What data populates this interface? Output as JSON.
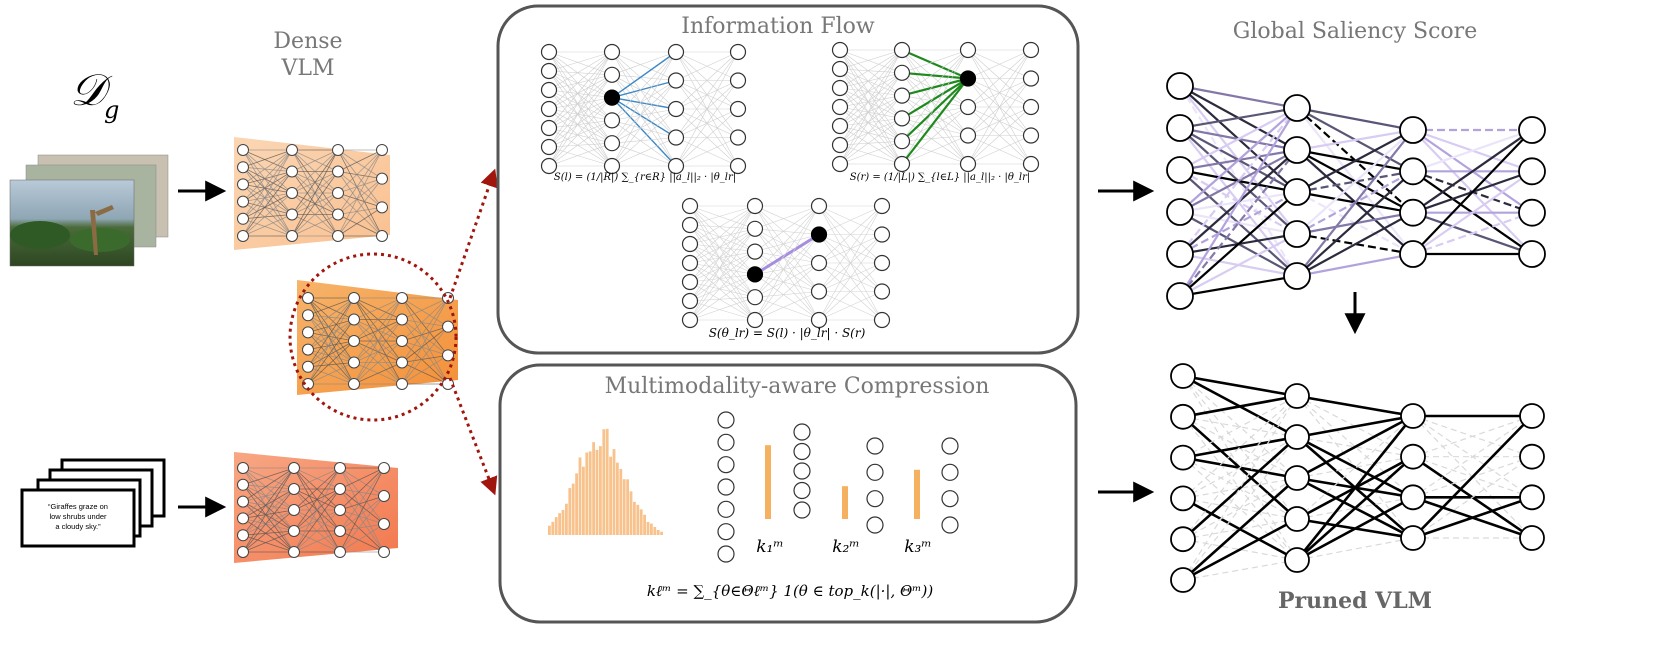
{
  "dataset_label": "𝒟",
  "dataset_subscript": "g",
  "dense_vlm_title": [
    "Dense",
    "VLM"
  ],
  "caption_card_text": [
    "“Giraffes graze on",
    "low shrubs under",
    "a cloudy sky.”"
  ],
  "info_flow": {
    "title": "Information Flow",
    "formula_left": "S(l) = (1/|R|) ∑_{r∈R} ||a_l||₂ · |θ_lr|",
    "formula_right": "S(r) = (1/|L|) ∑_{l∈L} ||a_l||₂ · |θ_lr|",
    "formula_center": "S(θ_lr) = S(l) · |θ_lr| · S(r)"
  },
  "compression": {
    "title": "Multimodality-aware Compression",
    "k_labels": [
      "k₁ᵐ",
      "k₂ᵐ",
      "k₃ᵐ"
    ],
    "k_values_relative": [
      0.9,
      0.4,
      0.6
    ],
    "formula": "kℓᵐ = ∑_{θ∈Θℓᵐ} 1(θ ∈ top_k(|·|, Θᵐ))"
  },
  "global_saliency_title": "Global Saliency Score",
  "pruned_vlm_title": "Pruned VLM",
  "colors": {
    "box_border": "#555555",
    "dense1": "#fbc89c",
    "dense2": "#f5a04e",
    "dense3": "#f58a5e",
    "dashed_circle": "#a0150c",
    "blue_edge": "#3d88c6",
    "green_edge": "#1e8a1e",
    "purple_edge": "#a78de0",
    "histogram": "#f8c28c",
    "k_bar": "#f5b060",
    "title_gray": "#777777"
  }
}
